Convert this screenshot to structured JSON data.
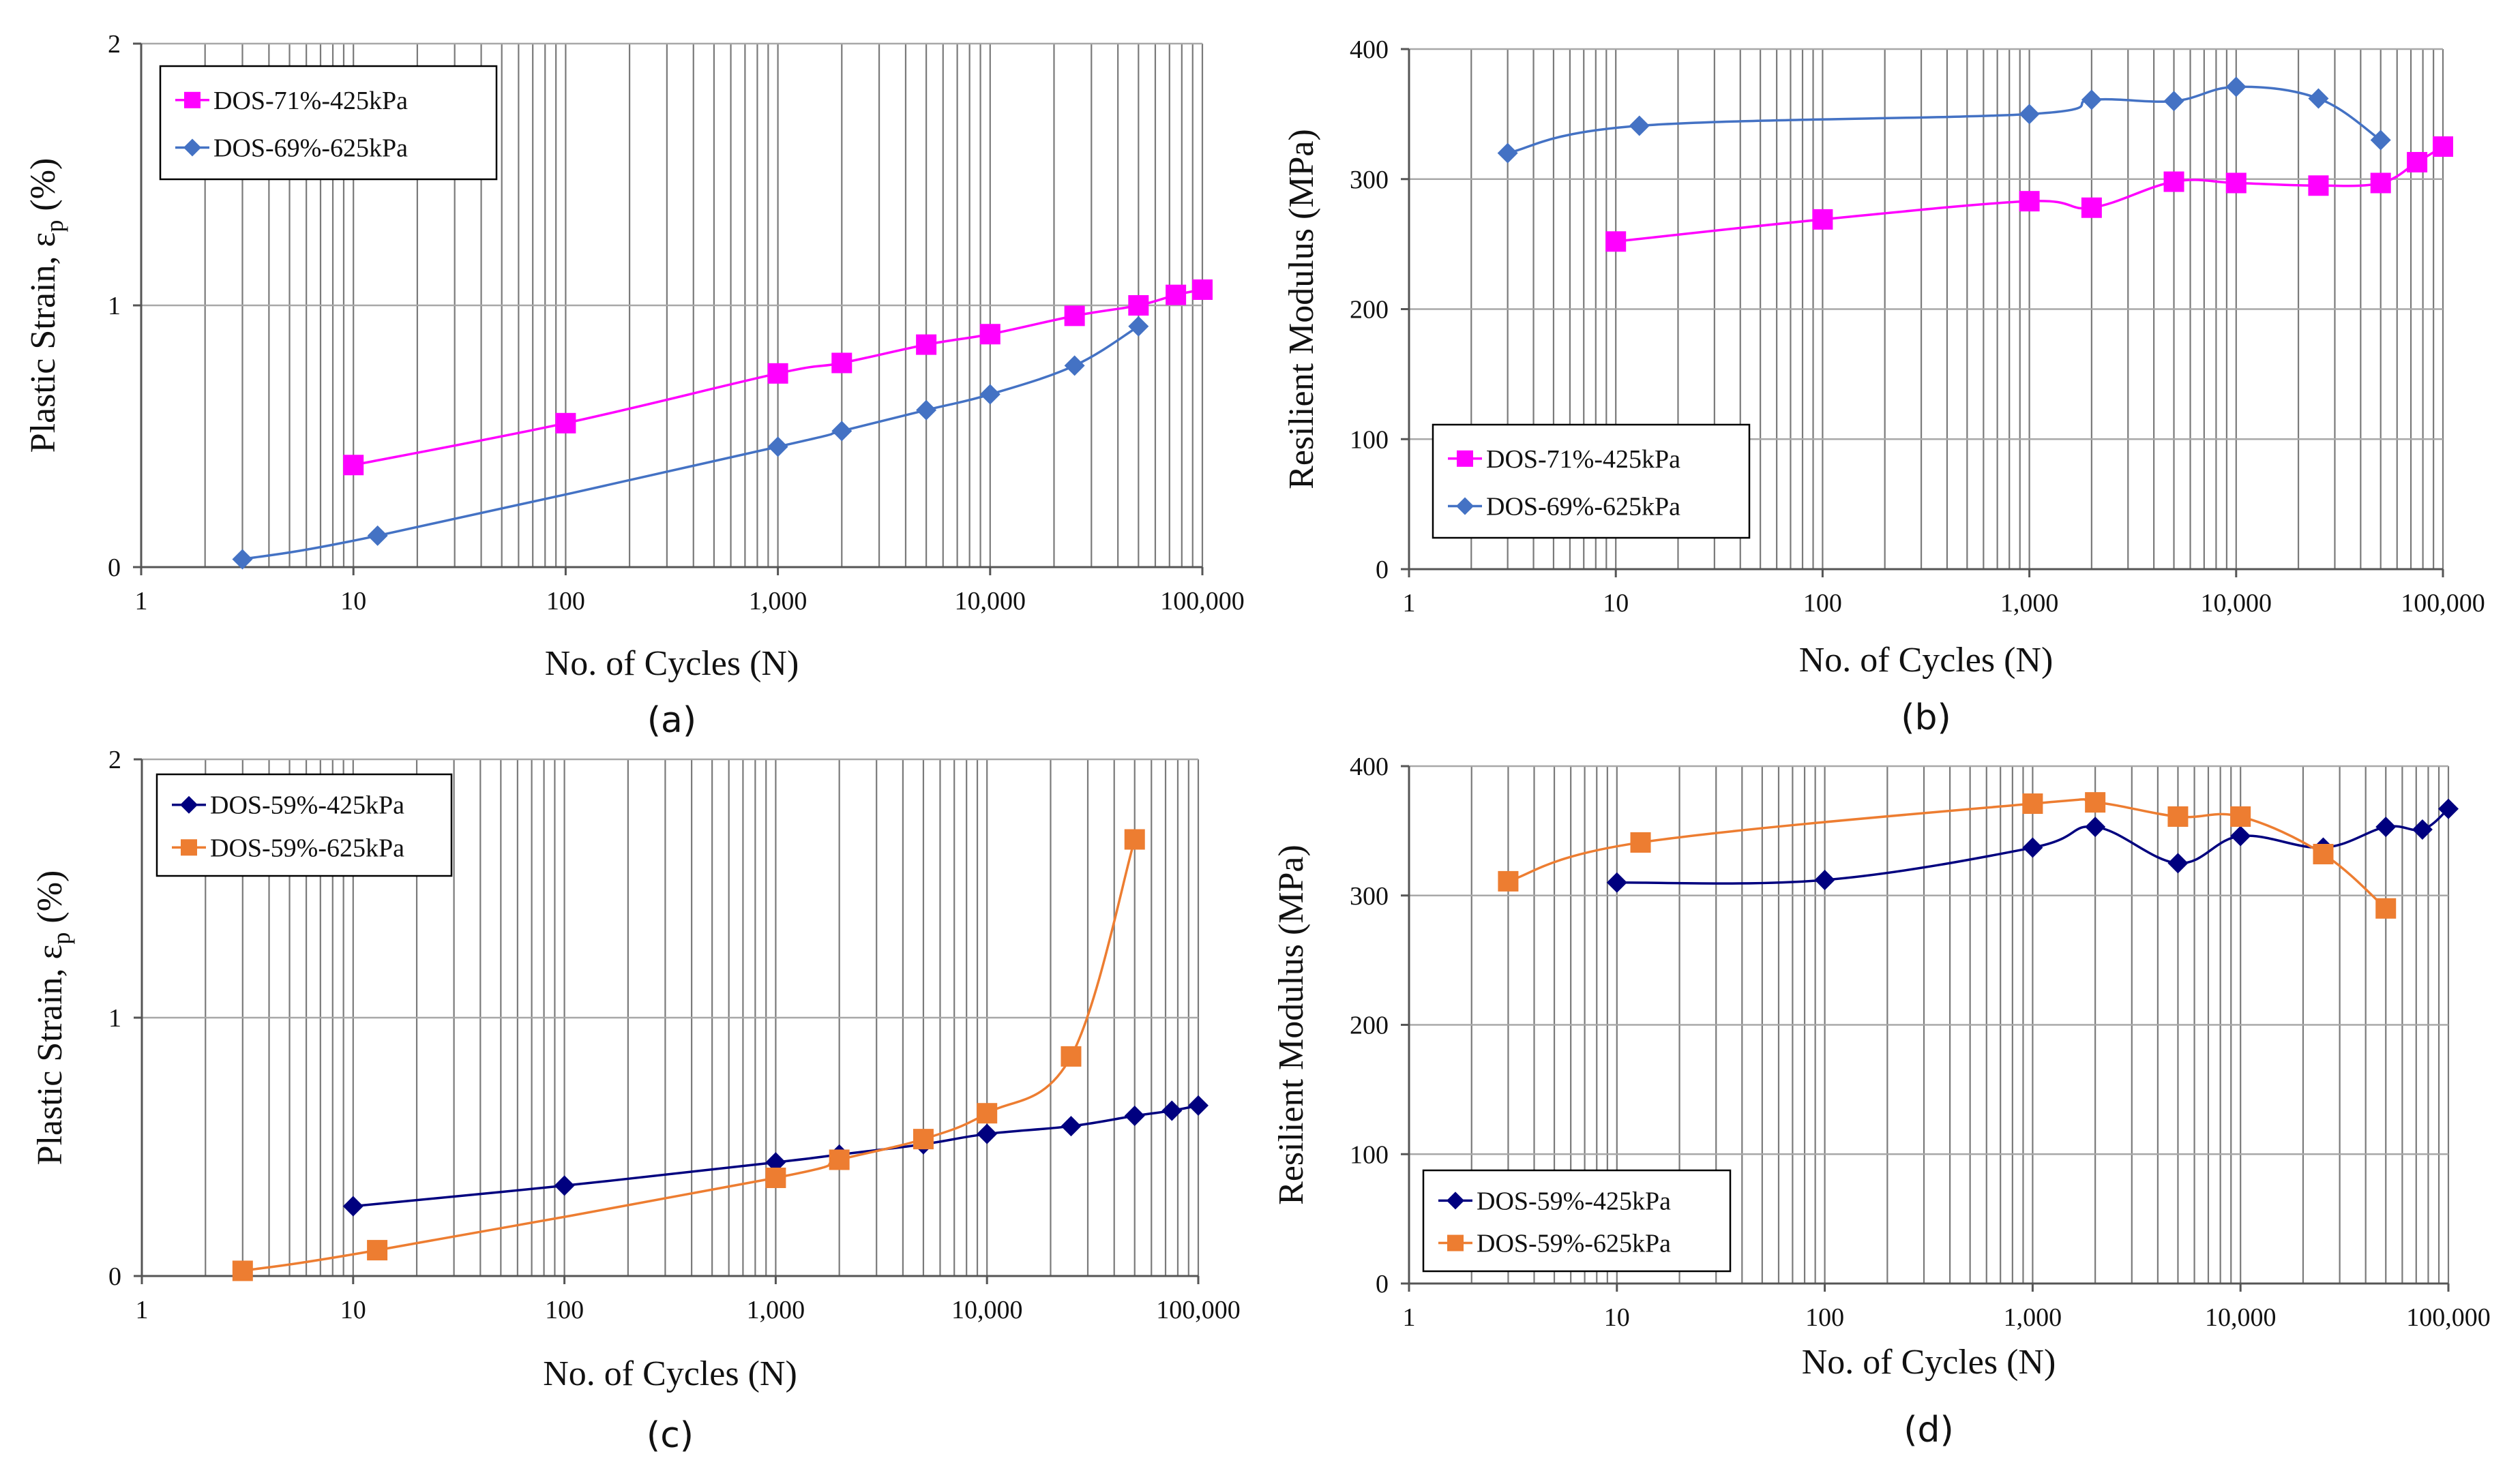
{
  "chart_data": [
    {
      "id": "a",
      "type": "line",
      "panel_label": "(a)",
      "xlabel": "No. of Cycles (N)",
      "ylabel_main": "Plastic Strain, ε",
      "ylabel_sub": "p",
      "ylabel_unit": " (%)",
      "xscale": "log",
      "xlim": [
        1,
        100000
      ],
      "ylim": [
        0,
        2
      ],
      "xticks": [
        1,
        10,
        100,
        1000,
        10000,
        100000
      ],
      "xtick_labels": [
        "1",
        "10",
        "100",
        "1,000",
        "10,000",
        "100,000"
      ],
      "yticks": [
        0,
        1,
        2
      ],
      "ytick_labels": [
        "0",
        "1",
        "2"
      ],
      "legend_position": "top-left",
      "series": [
        {
          "name": "DOS-71%-425kPa",
          "color": "#ff00ff",
          "marker": "square",
          "x": [
            10,
            100,
            1000,
            2000,
            5000,
            10000,
            25000,
            50000,
            75000,
            100000
          ],
          "y": [
            0.39,
            0.55,
            0.74,
            0.78,
            0.85,
            0.89,
            0.96,
            1.0,
            1.04,
            1.06
          ]
        },
        {
          "name": "DOS-69%-625kPa",
          "color": "#4472c4",
          "marker": "diamond",
          "x": [
            3,
            13,
            1000,
            2000,
            5000,
            10000,
            25000,
            50000
          ],
          "y": [
            0.03,
            0.12,
            0.46,
            0.52,
            0.6,
            0.66,
            0.77,
            0.92
          ]
        }
      ]
    },
    {
      "id": "b",
      "type": "line",
      "panel_label": "(b)",
      "xlabel": "No. of Cycles (N)",
      "ylabel_main": "Resilient Modulus (MPa)",
      "ylabel_sub": "",
      "ylabel_unit": "",
      "xscale": "log",
      "xlim": [
        1,
        100000
      ],
      "ylim": [
        0,
        400
      ],
      "xticks": [
        1,
        10,
        100,
        1000,
        10000,
        100000
      ],
      "xtick_labels": [
        "1",
        "10",
        "100",
        "1,000",
        "10,000",
        "100,000"
      ],
      "yticks": [
        0,
        100,
        200,
        300,
        400
      ],
      "ytick_labels": [
        "0",
        "100",
        "200",
        "300",
        "400"
      ],
      "legend_position": "bottom-left",
      "series": [
        {
          "name": "DOS-71%-425kPa",
          "color": "#ff00ff",
          "marker": "square",
          "x": [
            10,
            100,
            1000,
            2000,
            5000,
            10000,
            25000,
            50000,
            75000,
            100000
          ],
          "y": [
            252,
            269,
            283,
            278,
            298,
            297,
            295,
            297,
            313,
            325
          ]
        },
        {
          "name": "DOS-69%-625kPa",
          "color": "#4472c4",
          "marker": "diamond",
          "x": [
            3,
            13,
            1000,
            2000,
            5000,
            10000,
            25000,
            50000
          ],
          "y": [
            320,
            341,
            350,
            361,
            360,
            371,
            362,
            330
          ]
        }
      ]
    },
    {
      "id": "c",
      "type": "line",
      "panel_label": "(c)",
      "xlabel": "No. of Cycles (N)",
      "ylabel_main": "Plastic Strain, ε",
      "ylabel_sub": "p",
      "ylabel_unit": " (%)",
      "xscale": "log",
      "xlim": [
        1,
        100000
      ],
      "ylim": [
        0,
        2
      ],
      "xticks": [
        1,
        10,
        100,
        1000,
        10000,
        100000
      ],
      "xtick_labels": [
        "1",
        "10",
        "100",
        "1,000",
        "10,000",
        "100,000"
      ],
      "yticks": [
        0,
        1,
        2
      ],
      "ytick_labels": [
        "0",
        "1",
        "2"
      ],
      "legend_position": "top-left",
      "series": [
        {
          "name": "DOS-59%-425kPa",
          "color": "#00007f",
          "marker": "diamond",
          "x": [
            10,
            100,
            1000,
            2000,
            5000,
            10000,
            25000,
            50000,
            75000,
            100000
          ],
          "y": [
            0.27,
            0.35,
            0.44,
            0.47,
            0.51,
            0.55,
            0.58,
            0.62,
            0.64,
            0.66
          ]
        },
        {
          "name": "DOS-59%-625kPa",
          "color": "#ed7d31",
          "marker": "square",
          "x": [
            3,
            13,
            1000,
            2000,
            5000,
            10000,
            25000,
            50000
          ],
          "y": [
            0.02,
            0.1,
            0.38,
            0.45,
            0.53,
            0.63,
            0.85,
            1.69
          ]
        }
      ]
    },
    {
      "id": "d",
      "type": "line",
      "panel_label": "(d)",
      "xlabel": "No. of Cycles (N)",
      "ylabel_main": "Resilient Modulus (MPa)",
      "ylabel_sub": "",
      "ylabel_unit": "",
      "xscale": "log",
      "xlim": [
        1,
        100000
      ],
      "ylim": [
        0,
        400
      ],
      "xticks": [
        1,
        10,
        100,
        1000,
        10000,
        100000
      ],
      "xtick_labels": [
        "1",
        "10",
        "100",
        "1,000",
        "10,000",
        "100,000"
      ],
      "yticks": [
        0,
        100,
        200,
        300,
        400
      ],
      "ytick_labels": [
        "0",
        "100",
        "200",
        "300",
        "400"
      ],
      "legend_position": "bottom-left",
      "series": [
        {
          "name": "DOS-59%-425kPa",
          "color": "#00007f",
          "marker": "diamond",
          "x": [
            10,
            100,
            1000,
            2000,
            5000,
            10000,
            25000,
            50000,
            75000,
            100000
          ],
          "y": [
            310,
            312,
            337,
            353,
            325,
            346,
            337,
            353,
            351,
            367
          ]
        },
        {
          "name": "DOS-59%-625kPa",
          "color": "#ed7d31",
          "marker": "square",
          "x": [
            3,
            13,
            1000,
            2000,
            5000,
            10000,
            25000,
            50000
          ],
          "y": [
            311,
            341,
            371,
            372,
            361,
            361,
            332,
            290
          ]
        }
      ]
    }
  ]
}
